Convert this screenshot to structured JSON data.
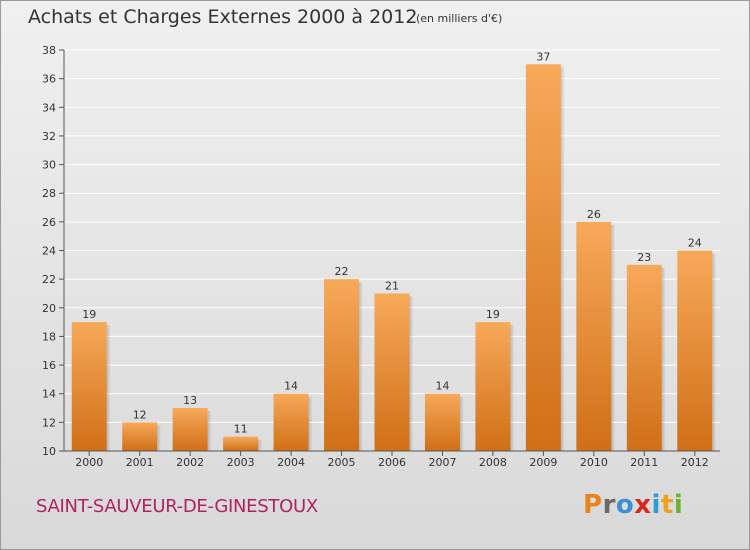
{
  "title": "Achats et Charges Externes 2000 à 2012",
  "subtitle": "(en milliers d'€)",
  "commune": "SAINT-SAUVEUR-DE-GINESTOUX",
  "logo": {
    "text": "Proxiti",
    "letters": [
      {
        "ch": "P",
        "color": "#e8841c"
      },
      {
        "ch": "r",
        "color": "#6a6a6a"
      },
      {
        "ch": "o",
        "color": "#3a8fd6"
      },
      {
        "ch": "x",
        "color": "#d6281f"
      },
      {
        "ch": "i",
        "color": "#2f9bd6"
      },
      {
        "ch": "t",
        "color": "#f0a01c"
      },
      {
        "ch": "i",
        "color": "#6ab42a"
      }
    ]
  },
  "colors": {
    "bar_top": "#f7a95a",
    "bar_bottom": "#d06f16",
    "axis": "#555555",
    "grid": "#ffffff",
    "label": "#333333"
  },
  "chart_data": {
    "type": "bar",
    "categories": [
      "2000",
      "2001",
      "2002",
      "2003",
      "2004",
      "2005",
      "2006",
      "2007",
      "2008",
      "2009",
      "2010",
      "2011",
      "2012"
    ],
    "values": [
      19,
      12,
      13,
      11,
      14,
      22,
      21,
      14,
      19,
      37,
      26,
      23,
      24
    ],
    "data_labels": [
      "19",
      "12",
      "13",
      "11",
      "14",
      "22",
      "21",
      "14",
      "19",
      "37",
      "26",
      "23",
      "24"
    ],
    "title": "Achats et Charges Externes 2000 à 2012",
    "ylim": [
      10,
      38
    ],
    "yticks": [
      10,
      12,
      14,
      16,
      18,
      20,
      22,
      24,
      26,
      28,
      30,
      32,
      34,
      36,
      38
    ],
    "grid": true,
    "legend": "none"
  }
}
